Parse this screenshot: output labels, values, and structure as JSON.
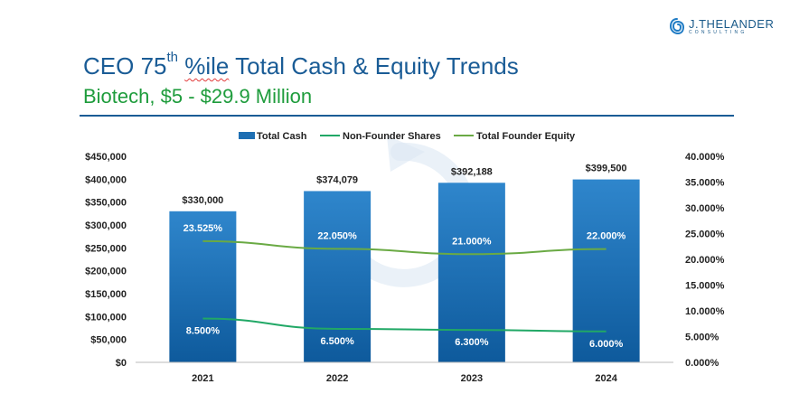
{
  "logo": {
    "name": "J.THELANDER",
    "sub": "CONSULTING"
  },
  "header": {
    "title_pre": "CEO 75",
    "title_sup": "th",
    "title_word": "%ile",
    "title_post": " Total Cash & Equity Trends",
    "subtitle": "Biotech, $5 - $29.9 Million"
  },
  "colors": {
    "bar": "#1e6fb3",
    "non_founder": "#21a866",
    "founder": "#6aaa44",
    "title": "#1a5c96",
    "subtitle": "#1e9c3c"
  },
  "chart_data": {
    "type": "bar+line",
    "categories": [
      "2021",
      "2022",
      "2023",
      "2024"
    ],
    "legend_position": "top",
    "y_left": {
      "ylim": [
        0,
        450000
      ],
      "ticks": [
        "$0",
        "$50,000",
        "$100,000",
        "$150,000",
        "$200,000",
        "$250,000",
        "$300,000",
        "$350,000",
        "$400,000",
        "$450,000"
      ]
    },
    "y_right": {
      "ylim": [
        0,
        40
      ],
      "ticks": [
        "0.000%",
        "5.000%",
        "10.000%",
        "15.000%",
        "20.000%",
        "25.000%",
        "30.000%",
        "35.000%",
        "40.000%"
      ]
    },
    "series": [
      {
        "name": "Total Cash",
        "kind": "bar",
        "axis": "left",
        "values": [
          330000,
          374079,
          392188,
          399500
        ],
        "labels": [
          "$330,000",
          "$374,079",
          "$392,188",
          "$399,500"
        ]
      },
      {
        "name": "Non-Founder Shares",
        "kind": "line",
        "axis": "right",
        "values": [
          8.5,
          6.5,
          6.3,
          6.0
        ],
        "labels": [
          "8.500%",
          "6.500%",
          "6.300%",
          "6.000%"
        ]
      },
      {
        "name": "Total Founder Equity",
        "kind": "line",
        "axis": "right",
        "values": [
          23.525,
          22.05,
          21.0,
          22.0
        ],
        "labels": [
          "23.525%",
          "22.050%",
          "21.000%",
          "22.000%"
        ]
      }
    ]
  }
}
